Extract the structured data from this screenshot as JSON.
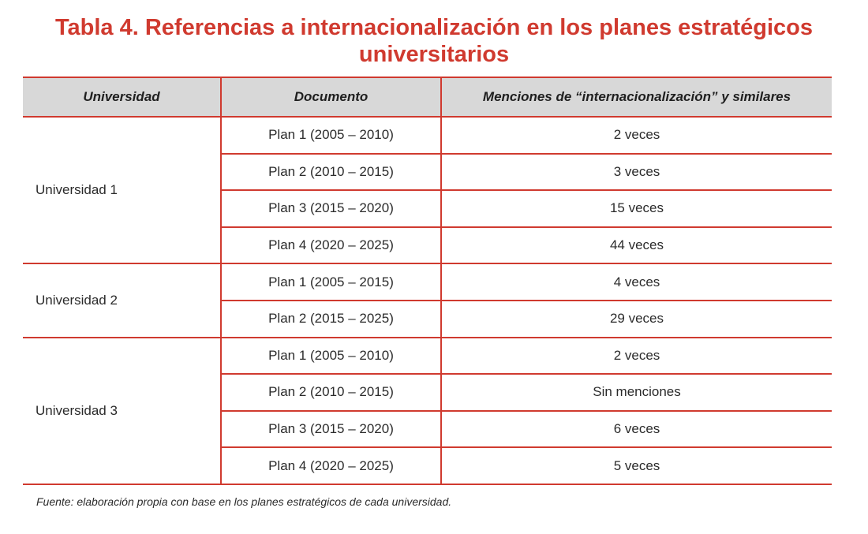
{
  "title": {
    "line1": "Tabla 4. Referencias a internacionalización en los planes estratégicos",
    "line2": "universitarios"
  },
  "table": {
    "headers": [
      "Universidad",
      "Documento",
      "Menciones de “internacionalización” y similares"
    ],
    "groups": [
      {
        "universidad": "Universidad 1",
        "rows": [
          {
            "documento": "Plan 1 (2005 – 2010)",
            "menciones": "2 veces"
          },
          {
            "documento": "Plan 2 (2010 – 2015)",
            "menciones": "3 veces"
          },
          {
            "documento": "Plan 3 (2015 – 2020)",
            "menciones": "15 veces"
          },
          {
            "documento": "Plan 4 (2020 – 2025)",
            "menciones": "44 veces"
          }
        ]
      },
      {
        "universidad": "Universidad 2",
        "rows": [
          {
            "documento": "Plan 1 (2005 – 2015)",
            "menciones": "4 veces"
          },
          {
            "documento": "Plan 2 (2015 – 2025)",
            "menciones": "29 veces"
          }
        ]
      },
      {
        "universidad": "Universidad 3",
        "rows": [
          {
            "documento": "Plan 1 (2005 – 2010)",
            "menciones": "2 veces"
          },
          {
            "documento": "Plan 2 (2010 – 2015)",
            "menciones": "Sin menciones"
          },
          {
            "documento": "Plan 3 (2015 – 2020)",
            "menciones": "6 veces"
          },
          {
            "documento": "Plan 4 (2020 – 2025)",
            "menciones": "5 veces"
          }
        ]
      }
    ]
  },
  "source": "Fuente: elaboración propia con base en los planes estratégicos de cada universidad.",
  "colors": {
    "accent": "#d03a2f",
    "header_bg": "#d8d8d8"
  }
}
